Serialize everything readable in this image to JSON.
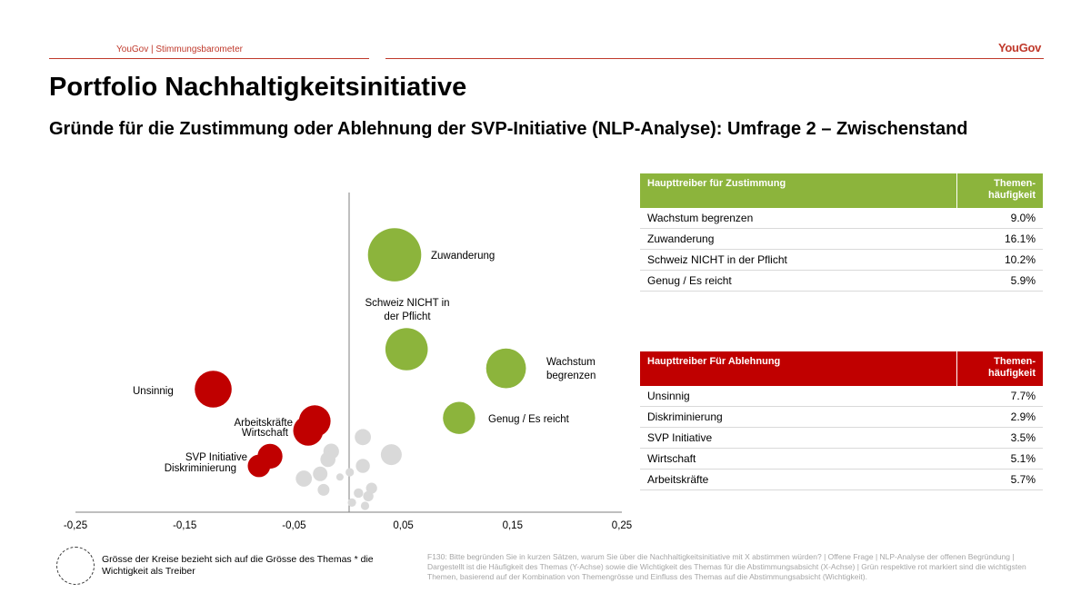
{
  "header": {
    "left_text": "YouGov | Stimmungsbarometer",
    "logo_text": "YouGov"
  },
  "title": "Portfolio Nachhaltigkeitsinitiative",
  "subtitle": "Gründe für die Zustimmung oder Ablehnung der SVP-Initiative (NLP-Analyse): Umfrage 2 – Zwischenstand",
  "colors": {
    "green": "#8cb43c",
    "red": "#c00000",
    "grey": "#d9d9d9",
    "accent": "#c0392b"
  },
  "chart_data": {
    "type": "scatter",
    "xlim": [
      -0.25,
      0.25
    ],
    "x_ticks": [
      "-0,25",
      "-0,15",
      "-0,05",
      "0,05",
      "0,15",
      "0,25"
    ],
    "x_tick_values": [
      -0.25,
      -0.15,
      -0.05,
      0.05,
      0.15,
      0.25
    ],
    "ylim": [
      0,
      0.2
    ],
    "series": [
      {
        "name": "Zustimmung",
        "color": "#8cb43c",
        "points": [
          {
            "label": "Zuwanderung",
            "x": 0.042,
            "y": 0.161,
            "size": 16.1
          },
          {
            "label": "Schweiz NICHT in der Pflicht",
            "x": 0.053,
            "y": 0.102,
            "size": 10.2
          },
          {
            "label": "Wachstum begrenzen",
            "x": 0.144,
            "y": 0.09,
            "size": 9.0
          },
          {
            "label": "Genug / Es reicht",
            "x": 0.101,
            "y": 0.059,
            "size": 5.9
          }
        ]
      },
      {
        "name": "Ablehnung",
        "color": "#c00000",
        "points": [
          {
            "label": "Unsinnig",
            "x": -0.124,
            "y": 0.077,
            "size": 7.7
          },
          {
            "label": "Arbeitskräfte",
            "x": -0.031,
            "y": 0.057,
            "size": 5.7
          },
          {
            "label": "Wirtschaft",
            "x": -0.037,
            "y": 0.051,
            "size": 5.1
          },
          {
            "label": "SVP Initiative",
            "x": -0.072,
            "y": 0.035,
            "size": 3.5
          },
          {
            "label": "Diskriminierung",
            "x": -0.082,
            "y": 0.029,
            "size": 2.9
          }
        ]
      },
      {
        "name": "Andere",
        "color": "#d9d9d9",
        "points": [
          {
            "x": 0.013,
            "y": 0.047,
            "size": 1.5
          },
          {
            "x": 0.039,
            "y": 0.036,
            "size": 2.5
          },
          {
            "x": -0.016,
            "y": 0.038,
            "size": 1.4
          },
          {
            "x": -0.019,
            "y": 0.033,
            "size": 1.3
          },
          {
            "x": 0.013,
            "y": 0.029,
            "size": 1.1
          },
          {
            "x": -0.026,
            "y": 0.024,
            "size": 1.2
          },
          {
            "x": -0.041,
            "y": 0.021,
            "size": 1.5
          },
          {
            "x": -0.023,
            "y": 0.014,
            "size": 0.8
          },
          {
            "x": 0.021,
            "y": 0.015,
            "size": 0.7
          },
          {
            "x": 0.018,
            "y": 0.01,
            "size": 0.6
          },
          {
            "x": 0.009,
            "y": 0.012,
            "size": 0.5
          },
          {
            "x": 0.001,
            "y": 0.025,
            "size": 0.4
          },
          {
            "x": 0.003,
            "y": 0.006,
            "size": 0.4
          },
          {
            "x": 0.015,
            "y": 0.004,
            "size": 0.4
          },
          {
            "x": -0.008,
            "y": 0.022,
            "size": 0.3
          }
        ]
      }
    ],
    "grid": false
  },
  "labels": {
    "zuwanderung": "Zuwanderung",
    "schweiz_1": "Schweiz NICHT in",
    "schweiz_2": "der Pflicht",
    "wachstum_1": "Wachstum",
    "wachstum_2": "begrenzen",
    "genug": "Genug / Es reicht",
    "unsinnig": "Unsinnig",
    "arbeitskraefte": "Arbeitskräfte",
    "wirtschaft": "Wirtschaft",
    "svp": "SVP Initiative",
    "diskriminierung": "Diskriminierung"
  },
  "table_zustimmung": {
    "header_label": "Haupttreiber für Zustimmung",
    "header_value_1": "Themen-",
    "header_value_2": "häufigkeit",
    "rows": [
      {
        "label": "Wachstum begrenzen",
        "value": "9.0%"
      },
      {
        "label": "Zuwanderung",
        "value": "16.1%"
      },
      {
        "label": "Schweiz NICHT in der Pflicht",
        "value": "10.2%"
      },
      {
        "label": "Genug / Es reicht",
        "value": "5.9%"
      }
    ]
  },
  "table_ablehnung": {
    "header_label": "Haupttreiber Für Ablehnung",
    "header_value_1": "Themen-",
    "header_value_2": "häufigkeit",
    "rows": [
      {
        "label": "Unsinnig",
        "value": "7.7%"
      },
      {
        "label": "Diskriminierung",
        "value": "2.9%"
      },
      {
        "label": "SVP Initiative",
        "value": "3.5%"
      },
      {
        "label": "Wirtschaft",
        "value": "5.1%"
      },
      {
        "label": "Arbeitskräfte",
        "value": "5.7%"
      }
    ]
  },
  "legend_text": "Grösse der Kreise bezieht sich auf die Grösse des Themas * die Wichtigkeit als Treiber",
  "footnote": "F130: Bitte begründen Sie in kurzen Sätzen, warum Sie über die Nachhaltigkeitsinitiative mit X abstimmen würden? | Offene Frage | NLP-Analyse der offenen Begründung | Dargestellt ist die Häufigkeit des Themas (Y-Achse) sowie die Wichtigkeit des Themas für die Abstimmungsabsicht (X-Achse) | Grün respektive rot markiert sind die wichtigsten Themen, basierend auf der Kombination von Themengrösse und Einfluss des Themas auf die Abstimmungsabsicht (Wichtigkeit)."
}
